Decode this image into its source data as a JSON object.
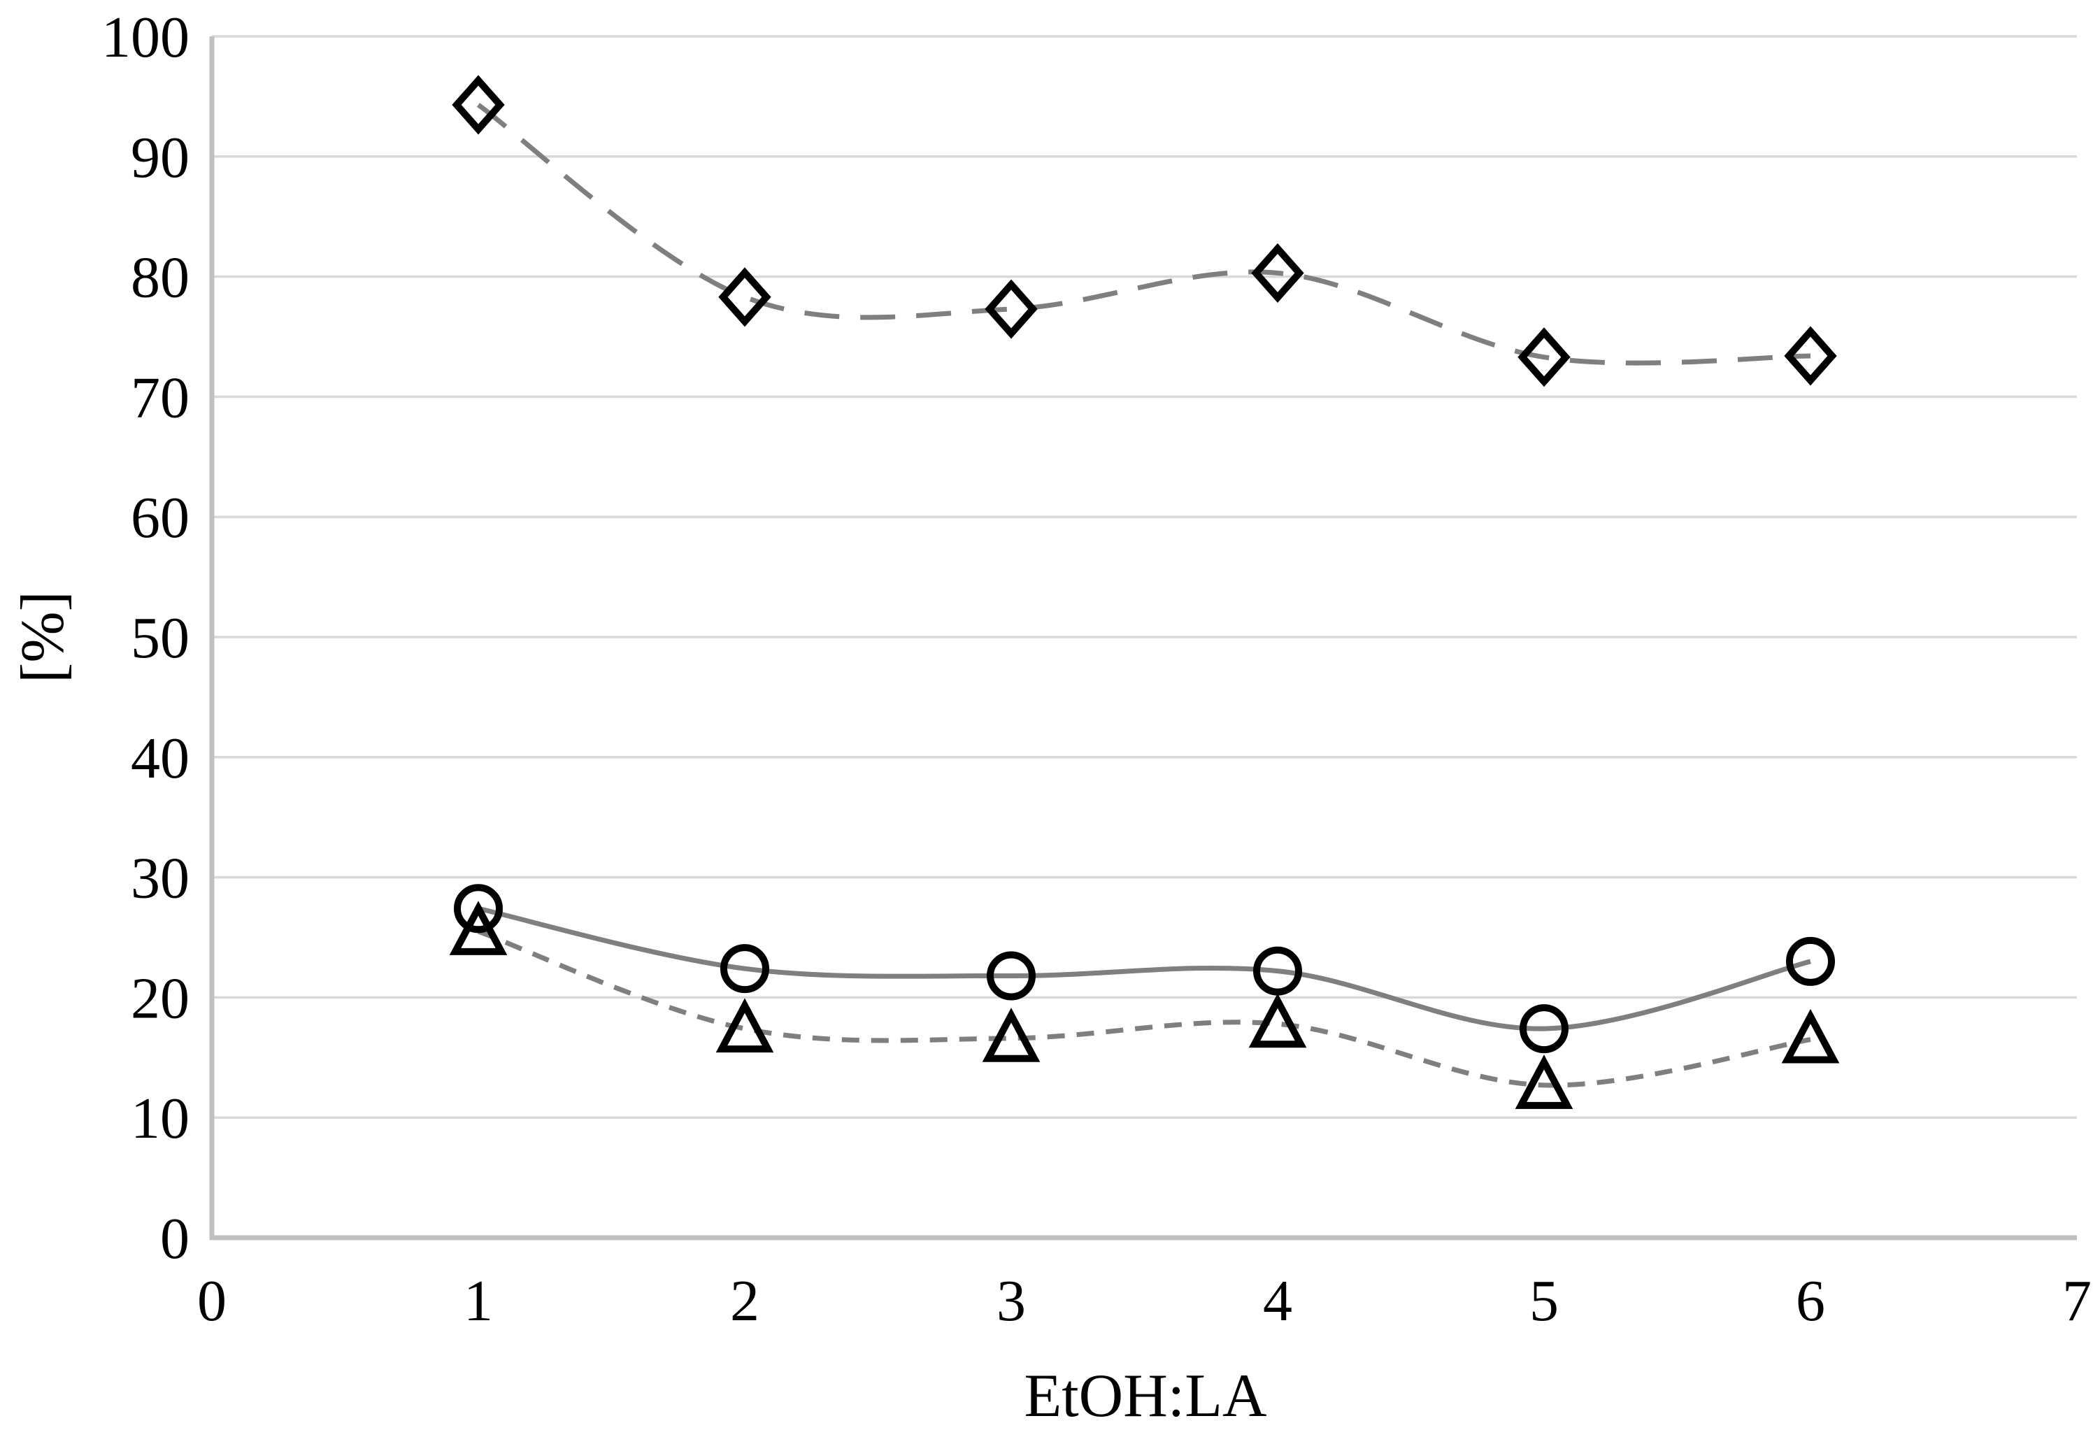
{
  "chart_data": {
    "type": "line",
    "title": "",
    "xlabel": "EtOH:LA",
    "ylabel": "[%]",
    "xlim": [
      0,
      7
    ],
    "ylim": [
      0,
      100
    ],
    "x_ticks": [
      0,
      1,
      2,
      3,
      4,
      5,
      6,
      7
    ],
    "y_ticks": [
      0,
      10,
      20,
      30,
      40,
      50,
      60,
      70,
      80,
      90,
      100
    ],
    "grid": "horizontal",
    "legend_position": "none",
    "line_smoothing": true,
    "x": [
      1,
      2,
      3,
      4,
      5,
      6
    ],
    "series": [
      {
        "name": "diamond-series",
        "marker": "diamond",
        "line_style": "long-dash",
        "line_color": "#7f7f7f",
        "marker_color": "#000000",
        "values": [
          94.3,
          78.3,
          77.3,
          80.3,
          73.3,
          73.4
        ]
      },
      {
        "name": "circle-series",
        "marker": "circle",
        "line_style": "solid",
        "line_color": "#7f7f7f",
        "marker_color": "#000000",
        "values": [
          27.4,
          22.4,
          21.8,
          22.2,
          17.4,
          23.0
        ]
      },
      {
        "name": "triangle-series",
        "marker": "triangle",
        "line_style": "short-dash",
        "line_color": "#7f7f7f",
        "marker_color": "#000000",
        "values": [
          25.5,
          17.4,
          16.6,
          17.8,
          12.7,
          16.5
        ]
      }
    ],
    "colors": {
      "background": "#ffffff",
      "gridline": "#d9d9d9",
      "axis": "#bfbfbf",
      "labels": "#000000"
    }
  }
}
